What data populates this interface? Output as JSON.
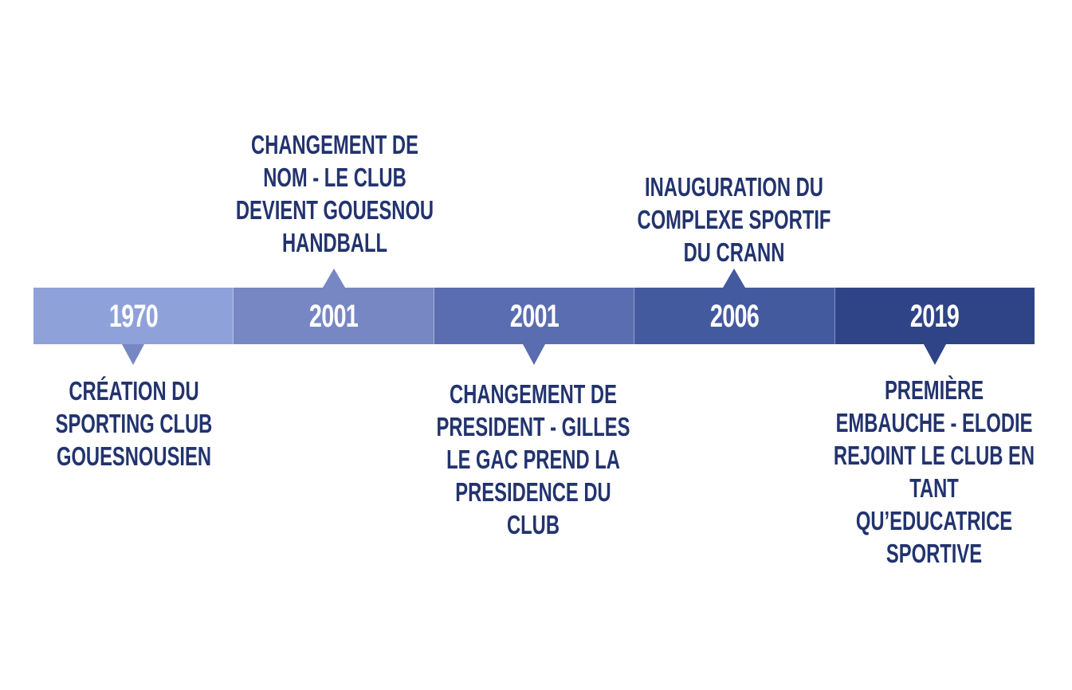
{
  "timeline": {
    "colors": {
      "text": "#22336e",
      "year_text": "#ffffff"
    },
    "segments": [
      {
        "year": "1970",
        "color": "#8fa1d9",
        "arrow_color": "#7787c3",
        "label_position": "below",
        "label_lines": [
          "CRÉATION DU",
          "SPORTING CLUB",
          "GOUESNOUSIEN"
        ]
      },
      {
        "year": "2001",
        "color": "#7787c3",
        "arrow_color": "#7787c3",
        "label_position": "above",
        "label_lines": [
          "CHANGEMENT DE",
          "NOM - LE CLUB",
          "DEVIENT GOUESNOU",
          "HANDBALL"
        ]
      },
      {
        "year": "2001",
        "color": "#5a6db0",
        "arrow_color": "#5a6db0",
        "label_position": "below",
        "label_lines": [
          "CHANGEMENT DE",
          "PRESIDENT - GILLES",
          "LE GAC PREND LA",
          "PRESIDENCE DU",
          "CLUB"
        ]
      },
      {
        "year": "2006",
        "color": "#445a9f",
        "arrow_color": "#445a9f",
        "label_position": "above",
        "label_lines": [
          "INAUGURATION DU",
          "COMPLEXE SPORTIF",
          "DU CRANN"
        ]
      },
      {
        "year": "2019",
        "color": "#2f4486",
        "arrow_color": "#2f4486",
        "label_position": "below",
        "label_lines": [
          "PREMIÈRE",
          "EMBAUCHE - ELODIE",
          "REJOINT LE CLUB EN",
          "TANT",
          "QU’EDUCATRICE",
          "SPORTIVE"
        ]
      }
    ]
  }
}
